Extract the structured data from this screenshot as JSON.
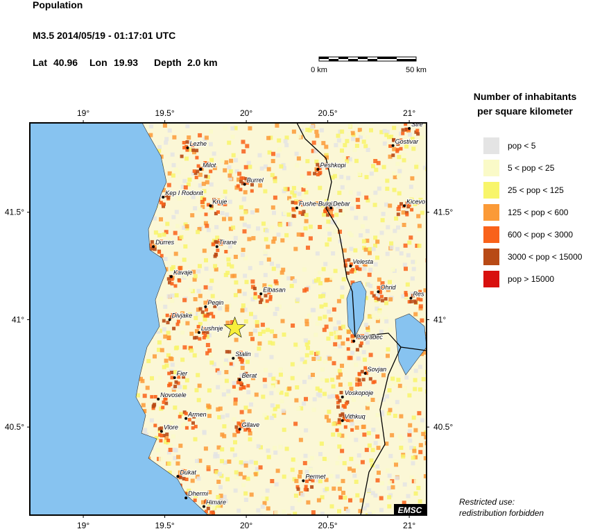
{
  "header": {
    "title": "Population",
    "event": "M3.5  2014/05/19 - 01:17:01 UTC",
    "lat_label": "Lat",
    "lat": 40.96,
    "lon_label": "Lon",
    "lon": 19.93,
    "depth_label": "Depth",
    "depth": "2.0 km"
  },
  "scale_bar": {
    "start": "0 km",
    "end": "50 km"
  },
  "map": {
    "lonlim": [
      18.672,
      21.106
    ],
    "latlim": [
      40.09,
      41.916
    ],
    "lon_ticks": [
      {
        "value": 19,
        "label": "19°"
      },
      {
        "value": 19.5,
        "label": "19.5°"
      },
      {
        "value": 20,
        "label": "20°"
      },
      {
        "value": 20.5,
        "label": "20.5°"
      },
      {
        "value": 21,
        "label": "21°"
      }
    ],
    "lat_ticks": [
      {
        "value": 40.5,
        "label": "40.5°"
      },
      {
        "value": 41,
        "label": "41°"
      },
      {
        "value": 41.5,
        "label": "41.5°"
      }
    ],
    "epicenter_color": "#f7ef3a",
    "cities": [
      {
        "name": "Stre",
        "lat": 41.89,
        "lon": 21.0
      },
      {
        "name": "Gostivar",
        "lat": 41.81,
        "lon": 20.9
      },
      {
        "name": "Lezhe",
        "lat": 41.8,
        "lon": 19.64
      },
      {
        "name": "Milot",
        "lat": 41.7,
        "lon": 19.72
      },
      {
        "name": "Peshkopi",
        "lat": 41.7,
        "lon": 20.44
      },
      {
        "name": "Burrel",
        "lat": 41.63,
        "lon": 19.99
      },
      {
        "name": "Kep I Rodonit",
        "lat": 41.57,
        "lon": 19.49
      },
      {
        "name": "Kruje",
        "lat": 41.53,
        "lon": 19.78
      },
      {
        "name": "Fushe-Bulqize",
        "lat": 41.52,
        "lon": 20.31
      },
      {
        "name": "Debar",
        "lat": 41.52,
        "lon": 20.52
      },
      {
        "name": "Kicevo",
        "lat": 41.53,
        "lon": 20.97
      },
      {
        "name": "Durres",
        "lat": 41.34,
        "lon": 19.43
      },
      {
        "name": "Tirane",
        "lat": 41.34,
        "lon": 19.82
      },
      {
        "name": "Velesta",
        "lat": 41.25,
        "lon": 20.64
      },
      {
        "name": "Kavaje",
        "lat": 41.2,
        "lon": 19.54
      },
      {
        "name": "Elbasan",
        "lat": 41.12,
        "lon": 20.09
      },
      {
        "name": "Ohrid",
        "lat": 41.13,
        "lon": 20.81
      },
      {
        "name": "Res",
        "lat": 41.1,
        "lon": 21.01
      },
      {
        "name": "Peqin",
        "lat": 41.06,
        "lon": 19.75
      },
      {
        "name": "Divjake",
        "lat": 41.0,
        "lon": 19.53
      },
      {
        "name": "Lushnje",
        "lat": 40.94,
        "lon": 19.71
      },
      {
        "name": "Pogradec",
        "lat": 40.9,
        "lon": 20.66
      },
      {
        "name": "Stalin",
        "lat": 40.82,
        "lon": 19.92
      },
      {
        "name": "Sovjan",
        "lat": 40.75,
        "lon": 20.73
      },
      {
        "name": "Fier",
        "lat": 40.73,
        "lon": 19.56
      },
      {
        "name": "Berat",
        "lat": 40.72,
        "lon": 19.96
      },
      {
        "name": "Voskopoje",
        "lat": 40.64,
        "lon": 20.59
      },
      {
        "name": "Novosele",
        "lat": 40.63,
        "lon": 19.46
      },
      {
        "name": "Armen",
        "lat": 40.54,
        "lon": 19.63
      },
      {
        "name": "Vithkuq",
        "lat": 40.53,
        "lon": 20.59
      },
      {
        "name": "Gllave",
        "lat": 40.49,
        "lon": 19.96
      },
      {
        "name": "Vlore",
        "lat": 40.48,
        "lon": 19.48
      },
      {
        "name": "Dukat",
        "lat": 40.27,
        "lon": 19.58
      },
      {
        "name": "Permet",
        "lat": 40.25,
        "lon": 20.35
      },
      {
        "name": "Dhermi",
        "lat": 40.17,
        "lon": 19.63
      },
      {
        "name": "Himare",
        "lat": 40.13,
        "lon": 19.74
      }
    ]
  },
  "legend": {
    "title_lines": [
      "Number of inhabitants",
      "per square kilometer"
    ],
    "items": [
      {
        "label": "pop < 5",
        "color": "#e4e4e4"
      },
      {
        "label": "5 < pop < 25",
        "color": "#fafac8"
      },
      {
        "label": "25 < pop < 125",
        "color": "#f8f56a"
      },
      {
        "label": "125 < pop < 600",
        "color": "#fb9a37"
      },
      {
        "label": "600 < pop < 3000",
        "color": "#f9621a"
      },
      {
        "label": "3000 < pop < 15000",
        "color": "#b84a16"
      },
      {
        "label": "pop > 15000",
        "color": "#d8100e"
      }
    ]
  },
  "notice": [
    "Restricted use:",
    "redistribution forbidden"
  ],
  "logo": "EMSC"
}
